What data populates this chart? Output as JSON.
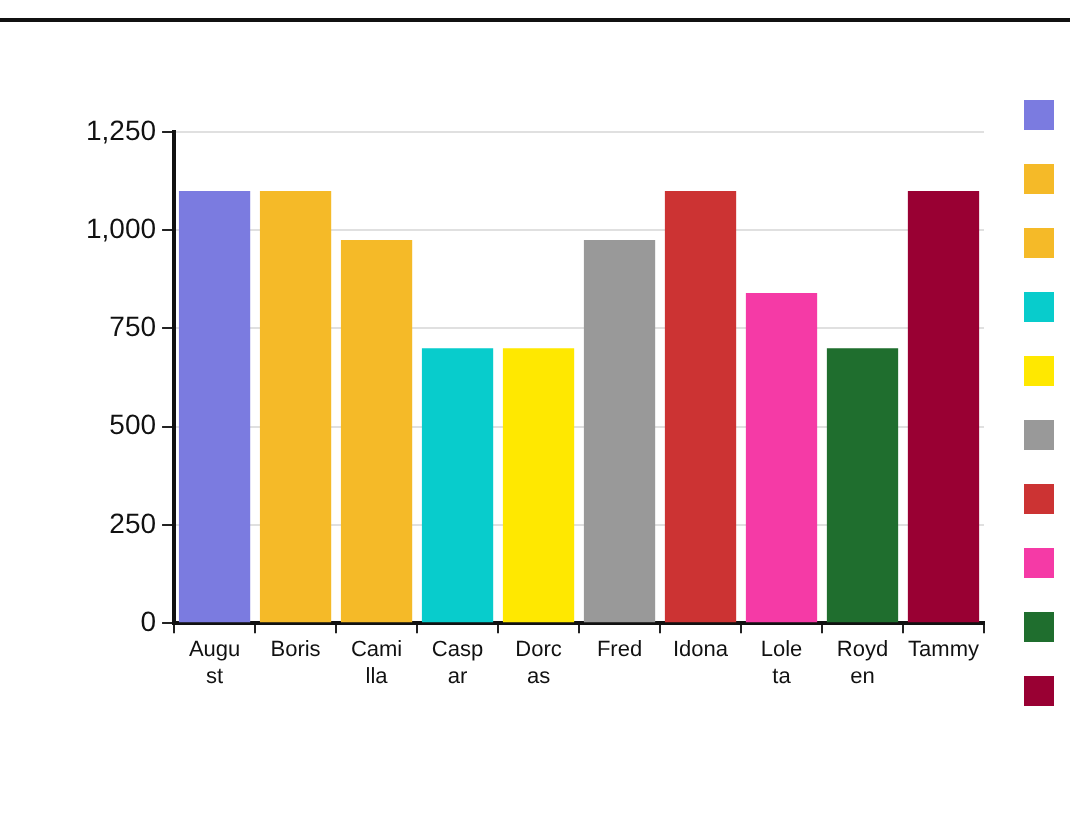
{
  "chart_data": {
    "type": "bar",
    "categories": [
      "August",
      "Boris",
      "Camilla",
      "Caspar",
      "Dorcas",
      "Fred",
      "Idona",
      "Loleta",
      "Royden",
      "Tammy"
    ],
    "values": [
      1100,
      1100,
      975,
      700,
      700,
      975,
      1100,
      840,
      700,
      1100
    ],
    "colors": [
      "#7b7be0",
      "#f5ba28",
      "#f5ba28",
      "#08cccc",
      "#ffe800",
      "#999999",
      "#cc3333",
      "#f53aa6",
      "#1f6e2e",
      "#990033"
    ],
    "ylim": [
      0,
      1250
    ],
    "yticks": [
      0,
      250,
      500,
      750,
      {
        "value": 1000,
        "label": "1,000"
      },
      {
        "value": 1250,
        "label": "1,250"
      }
    ],
    "grid": "y"
  }
}
